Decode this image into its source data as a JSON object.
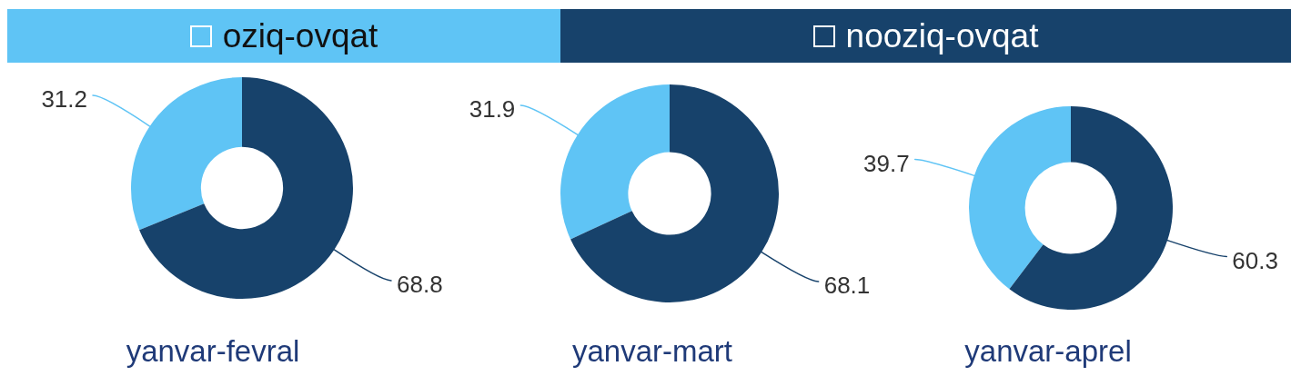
{
  "chart_data": {
    "type": "donut",
    "categories": [
      "oziq-ovqat",
      "nooziq-ovqat"
    ],
    "colors": [
      "#5fc4f5",
      "#17426b"
    ],
    "data_labels": true,
    "legend": "top",
    "series": [
      {
        "name": "yanvar-fevral",
        "values": [
          31.2,
          68.8
        ]
      },
      {
        "name": "yanvar-mart",
        "values": [
          31.9,
          68.1
        ]
      },
      {
        "name": "yanvar-aprel",
        "values": [
          39.7,
          60.3
        ]
      }
    ]
  }
}
